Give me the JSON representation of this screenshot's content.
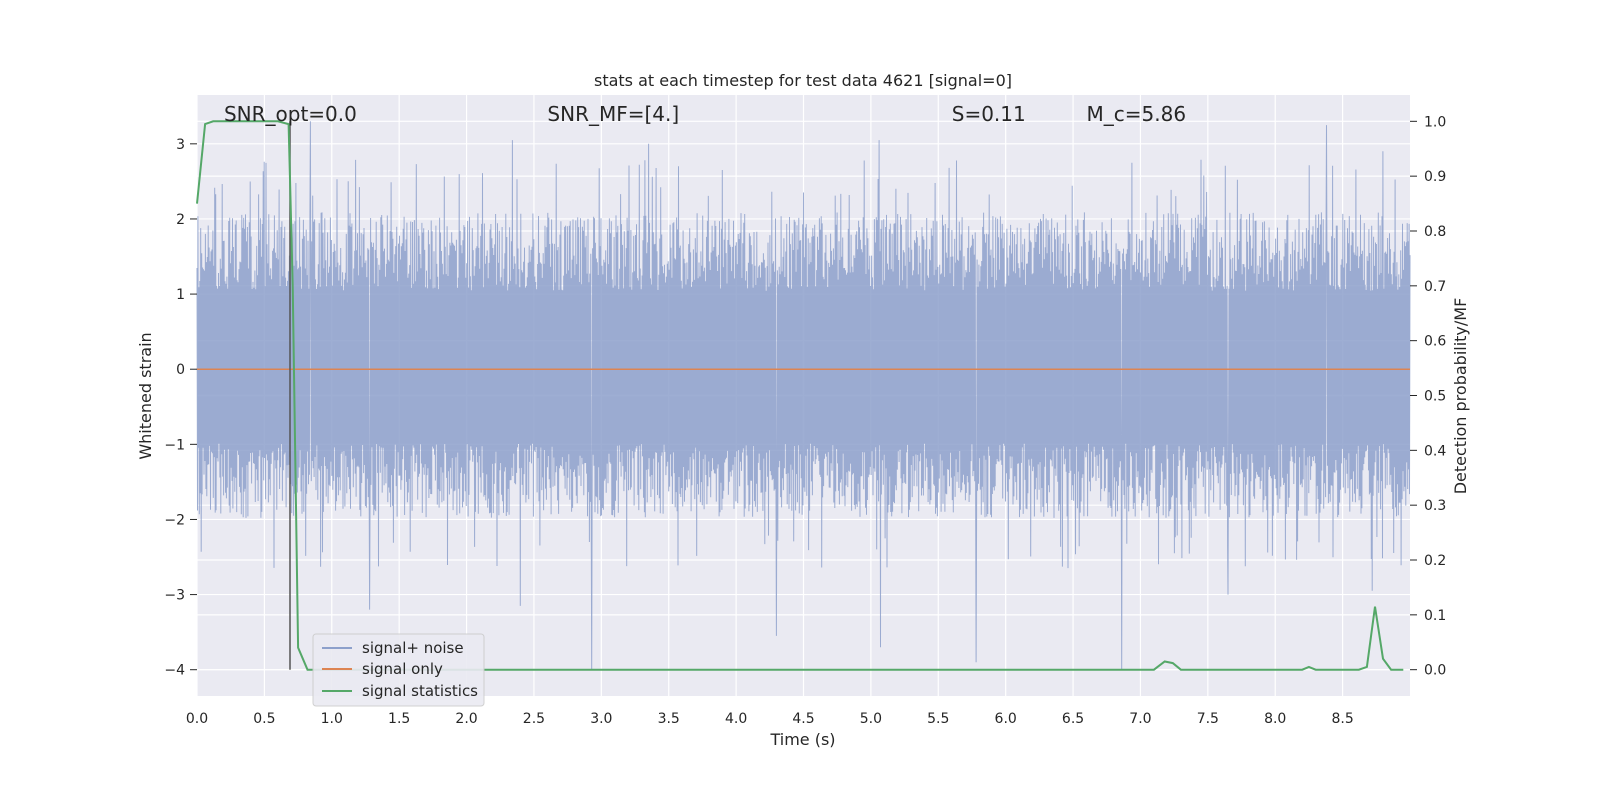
{
  "chart_data": {
    "type": "line",
    "title": "stats at each timestep for test data 4621 [signal=0]",
    "xlabel": "Time (s)",
    "ylabel": "Whitened strain",
    "y2label": "Detection probability/MF",
    "xlim": [
      0.0,
      9.0
    ],
    "ylim": [
      -4.35,
      3.65
    ],
    "y2lim": [
      -0.048,
      1.048
    ],
    "x_ticks": [
      "0.0",
      "0.5",
      "1.0",
      "1.5",
      "2.0",
      "2.5",
      "3.0",
      "3.5",
      "4.0",
      "4.5",
      "5.0",
      "5.5",
      "6.0",
      "6.5",
      "7.0",
      "7.5",
      "8.0",
      "8.5"
    ],
    "x_tick_values": [
      0.0,
      0.5,
      1.0,
      1.5,
      2.0,
      2.5,
      3.0,
      3.5,
      4.0,
      4.5,
      5.0,
      5.5,
      6.0,
      6.5,
      7.0,
      7.5,
      8.0,
      8.5
    ],
    "y_ticks": [
      "3",
      "2",
      "1",
      "0",
      "−1",
      "−2",
      "−3",
      "−4"
    ],
    "y_tick_values": [
      3,
      2,
      1,
      0,
      -1,
      -2,
      -3,
      -4
    ],
    "y2_ticks": [
      "1.0",
      "0.9",
      "0.8",
      "0.7",
      "0.6",
      "0.5",
      "0.4",
      "0.3",
      "0.2",
      "0.1",
      "0.0"
    ],
    "y2_tick_values": [
      1.0,
      0.9,
      0.8,
      0.7,
      0.6,
      0.5,
      0.4,
      0.3,
      0.2,
      0.1,
      0.0
    ],
    "grid": true,
    "legend_position": "lower-left",
    "annotations": [
      {
        "x": 0.2,
        "label": "SNR_opt=0.0"
      },
      {
        "x": 2.6,
        "label": "SNR_MF=[4.]"
      },
      {
        "x": 5.6,
        "label": "S=0.11"
      },
      {
        "x": 6.6,
        "label": "M_c=5.86"
      }
    ],
    "vline_x": 0.69,
    "series": [
      {
        "name": "signal+ noise",
        "color": "#8da0cb",
        "axis": "left",
        "kind": "noise",
        "typical_upper": 1.9,
        "typical_lower": -1.8,
        "spikes": [
          {
            "x": 0.84,
            "y": 3.3
          },
          {
            "x": 2.34,
            "y": 3.05
          },
          {
            "x": 2.93,
            "y": -4.0
          },
          {
            "x": 3.35,
            "y": 3.0
          },
          {
            "x": 4.3,
            "y": -3.55
          },
          {
            "x": 5.06,
            "y": 3.05
          },
          {
            "x": 5.07,
            "y": -3.7
          },
          {
            "x": 5.78,
            "y": -3.9
          },
          {
            "x": 6.86,
            "y": -4.0
          },
          {
            "x": 8.38,
            "y": 3.25
          },
          {
            "x": 8.8,
            "y": 2.9
          },
          {
            "x": 1.28,
            "y": -3.2
          },
          {
            "x": 2.4,
            "y": -3.15
          },
          {
            "x": 7.65,
            "y": -3.0
          },
          {
            "x": 8.72,
            "y": -2.95
          }
        ]
      },
      {
        "name": "signal only",
        "color": "#dd8452",
        "axis": "left",
        "x": [
          0.0,
          9.0
        ],
        "y": [
          0.0,
          0.0
        ]
      },
      {
        "name": "signal statistics",
        "color": "#55a868",
        "axis": "right",
        "x": [
          0.0,
          0.06,
          0.12,
          0.2,
          0.4,
          0.6,
          0.68,
          0.71,
          0.75,
          0.82,
          1.0,
          7.1,
          7.18,
          7.24,
          7.3,
          8.2,
          8.25,
          8.3,
          8.62,
          8.68,
          8.74,
          8.8,
          8.86,
          8.95
        ],
        "y": [
          0.85,
          0.995,
          1.0,
          1.0,
          1.0,
          1.0,
          0.995,
          0.7,
          0.04,
          0.0,
          0.0,
          0.0,
          0.015,
          0.012,
          0.0,
          0.0,
          0.005,
          0.0,
          0.0,
          0.005,
          0.115,
          0.02,
          0.0,
          0.0
        ]
      }
    ]
  }
}
